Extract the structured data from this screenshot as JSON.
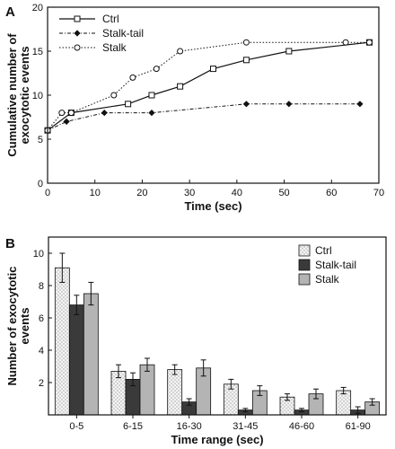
{
  "chart_data": [
    {
      "panel": "A",
      "type": "line",
      "xlabel": "Time (sec)",
      "ylabel": "Cumulative number of exocytotic events",
      "xlim": [
        0,
        70
      ],
      "ylim": [
        0,
        20
      ],
      "xticks": [
        0,
        10,
        20,
        30,
        40,
        50,
        60,
        70
      ],
      "yticks": [
        0,
        5,
        10,
        15,
        20
      ],
      "legend_position": "top-left",
      "grid": false,
      "series": [
        {
          "name": "Ctrl",
          "style": "solid",
          "marker": "open-square",
          "points": [
            [
              0,
              6
            ],
            [
              5,
              8
            ],
            [
              17,
              9
            ],
            [
              22,
              10
            ],
            [
              28,
              11
            ],
            [
              35,
              13
            ],
            [
              42,
              14
            ],
            [
              51,
              15
            ],
            [
              68,
              16
            ]
          ]
        },
        {
          "name": "Stalk-tail",
          "style": "dash-dot",
          "marker": "filled-diamond",
          "points": [
            [
              0,
              6
            ],
            [
              4,
              7
            ],
            [
              12,
              8
            ],
            [
              22,
              8
            ],
            [
              42,
              9
            ],
            [
              51,
              9
            ],
            [
              66,
              9
            ]
          ]
        },
        {
          "name": "Stalk",
          "style": "dotted",
          "marker": "open-circle",
          "points": [
            [
              0,
              6
            ],
            [
              3,
              8
            ],
            [
              5,
              8
            ],
            [
              14,
              10
            ],
            [
              18,
              12
            ],
            [
              23,
              13
            ],
            [
              28,
              15
            ],
            [
              42,
              16
            ],
            [
              63,
              16
            ],
            [
              68,
              16
            ]
          ]
        }
      ]
    },
    {
      "panel": "B",
      "type": "bar",
      "xlabel": "Time range (sec)",
      "ylabel": "Number of exocytotic events",
      "ylim": [
        0,
        11
      ],
      "yticks": [
        2,
        4,
        6,
        8,
        10
      ],
      "legend_position": "top-right",
      "grid": false,
      "categories": [
        "0-5",
        "6-15",
        "16-30",
        "31-45",
        "46-60",
        "61-90"
      ],
      "series": [
        {
          "name": "Ctrl",
          "pattern": "dotted-light",
          "values": [
            9.1,
            2.7,
            2.8,
            1.9,
            1.1,
            1.5
          ],
          "errors": [
            0.9,
            0.4,
            0.3,
            0.3,
            0.2,
            0.2
          ]
        },
        {
          "name": "Stalk-tail",
          "pattern": "dark",
          "values": [
            6.8,
            2.2,
            0.8,
            0.3,
            0.3,
            0.3
          ],
          "errors": [
            0.6,
            0.4,
            0.2,
            0.1,
            0.1,
            0.2
          ]
        },
        {
          "name": "Stalk",
          "pattern": "gray",
          "values": [
            7.5,
            3.1,
            2.9,
            1.5,
            1.3,
            0.8
          ],
          "errors": [
            0.7,
            0.4,
            0.5,
            0.3,
            0.3,
            0.2
          ]
        }
      ]
    }
  ],
  "colors": {
    "axis": "#111111",
    "dark_bar": "#3a3a3a",
    "gray_bar": "#b4b4b4",
    "light_bar": "#f2f2f2"
  }
}
